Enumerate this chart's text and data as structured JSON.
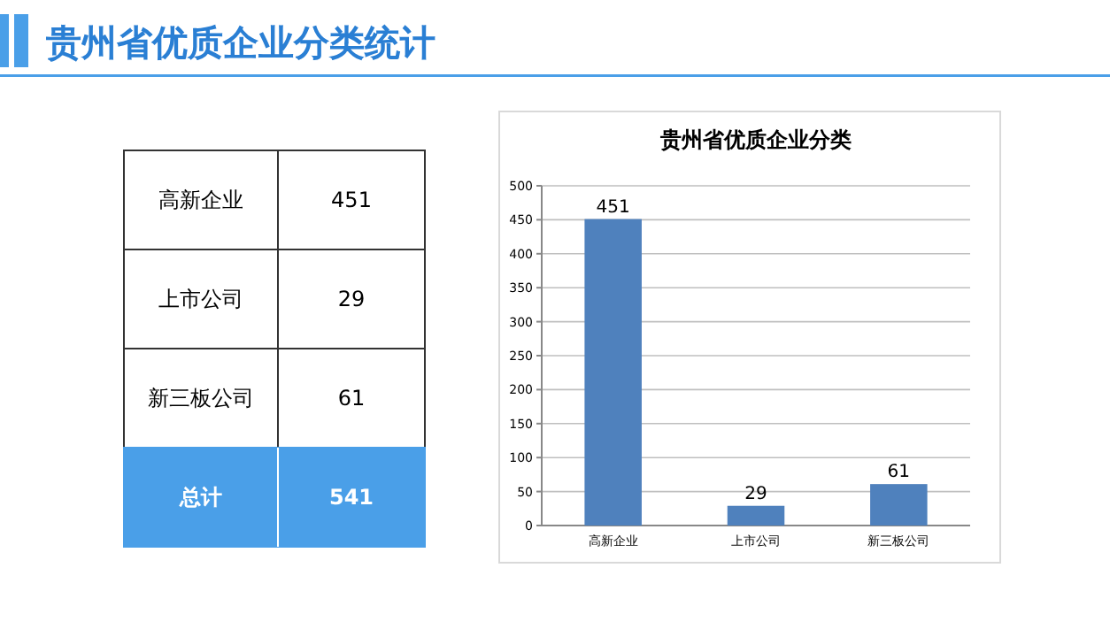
{
  "chart_data": [
    {
      "type": "other",
      "title": "贵州省优质企业分类统计",
      "categories": [
        "高新企业",
        "上市公司",
        "新三板公司",
        "总计"
      ],
      "values": [
        451,
        29,
        61,
        541
      ],
      "colors": [
        "#ffffff",
        "#ffffff",
        "#ffffff",
        "#4a9fe8"
      ],
      "data_labels": true
    },
    {
      "type": "bar",
      "title": "贵州省优质企业分类",
      "categories": [
        "高新企业",
        "上市公司",
        "新三板公司"
      ],
      "values": [
        451,
        29,
        61
      ],
      "color": "#4f81bd",
      "ylim": [
        0,
        500
      ],
      "yticks": [
        0,
        50,
        100,
        150,
        200,
        250,
        300,
        350,
        400,
        450,
        500
      ],
      "grid": "y",
      "data_labels": true
    }
  ]
}
